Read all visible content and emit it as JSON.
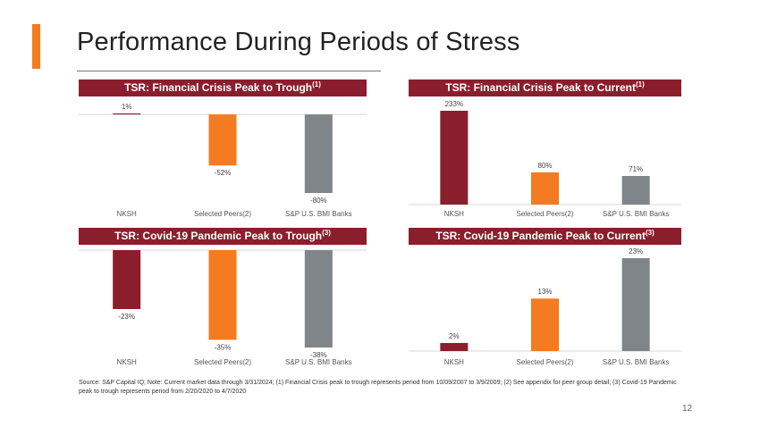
{
  "page": {
    "title": "Performance During Periods of Stress",
    "footnote": "Source: S&P Capital IQ; Note: Current market data through 3/31/2024; (1) Financial Crisis peak to trough represents period from 10/09/2007 to 3/9/2009; (2) See appendix for peer group detail; (3) Covid-19 Pandemic peak to trough represents period from 2/20/2020 to 4/7/2020",
    "page_number": "12"
  },
  "colors": {
    "nksh": "#8b1e2d",
    "peers": "#f47b20",
    "banks": "#7f8589",
    "header": "#8b1e2d",
    "accent": "#f47b20"
  },
  "chart_data": [
    {
      "type": "bar",
      "title": "TSR: Financial Crisis Peak to Trough",
      "title_note": "(1)",
      "categories": [
        "NKSH",
        "Selected Peers(2)",
        "S&P U.S. BMI Banks"
      ],
      "values": [
        1,
        -52,
        -80
      ],
      "value_labels": [
        "1%",
        "-52%",
        "-80%"
      ],
      "ylim": [
        -80,
        1
      ]
    },
    {
      "type": "bar",
      "title": "TSR: Financial Crisis Peak to Current",
      "title_note": "(1)",
      "categories": [
        "NKSH",
        "Selected Peers(2)",
        "S&P U.S. BMI Banks"
      ],
      "values": [
        233,
        80,
        71
      ],
      "value_labels": [
        "233%",
        "80%",
        "71%"
      ],
      "ylim": [
        0,
        233
      ]
    },
    {
      "type": "bar",
      "title": "TSR: Covid-19 Pandemic Peak to Trough",
      "title_note": "(3)",
      "categories": [
        "NKSH",
        "Selected Peers(2)",
        "S&P U.S. BMI Banks"
      ],
      "values": [
        -23,
        -35,
        -38
      ],
      "value_labels": [
        "-23%",
        "-35%",
        "-38%"
      ],
      "ylim": [
        -38,
        0
      ]
    },
    {
      "type": "bar",
      "title": "TSR: Covid-19 Pandemic Peak to Current",
      "title_note": "(3)",
      "categories": [
        "NKSH",
        "Selected Peers(2)",
        "S&P U.S. BMI Banks"
      ],
      "values": [
        2,
        13,
        23
      ],
      "value_labels": [
        "2%",
        "13%",
        "23%"
      ],
      "ylim": [
        0,
        23
      ]
    }
  ]
}
